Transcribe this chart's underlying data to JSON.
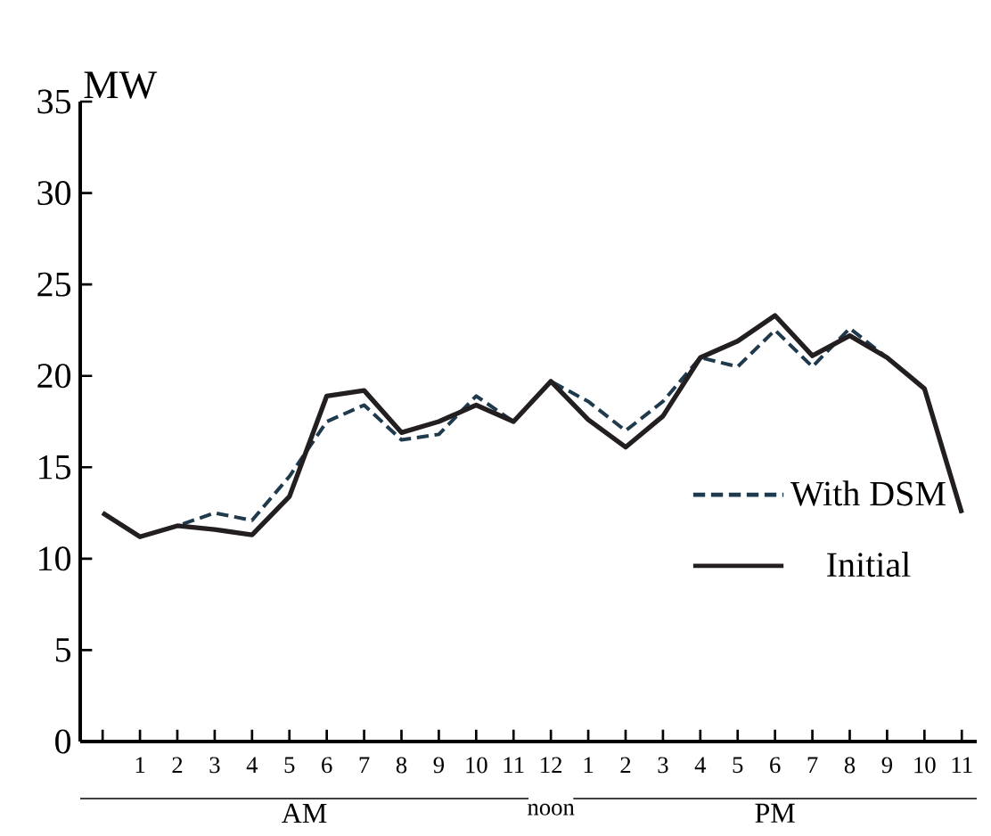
{
  "chart_data": {
    "type": "line",
    "ylabel": "MW",
    "categories": [
      null,
      "1",
      "2",
      "3",
      "4",
      "5",
      "6",
      "7",
      "8",
      "9",
      "10",
      "11",
      "12",
      "1",
      "2",
      "3",
      "4",
      "5",
      "6",
      "7",
      "8",
      "9",
      "10",
      "11"
    ],
    "series": [
      {
        "name": "With DSM",
        "color": "#1f3a4d",
        "line_style": "dashed",
        "values": [
          12.5,
          11.2,
          11.8,
          12.5,
          12.1,
          14.5,
          17.5,
          18.4,
          16.5,
          16.8,
          18.9,
          17.5,
          19.7,
          18.6,
          17.0,
          18.6,
          21.0,
          20.5,
          22.5,
          20.5,
          22.6,
          21.0,
          19.3,
          12.5
        ]
      },
      {
        "name": "Initial",
        "color": "#231f20",
        "line_style": "solid",
        "values": [
          12.5,
          11.2,
          11.8,
          11.6,
          11.3,
          13.4,
          18.9,
          19.2,
          16.9,
          17.5,
          18.4,
          17.5,
          19.7,
          17.6,
          16.1,
          17.8,
          21.0,
          21.9,
          23.3,
          21.1,
          22.2,
          21.0,
          19.3,
          12.5
        ]
      }
    ],
    "ylim": [
      0,
      35
    ],
    "yticks": [
      0,
      5,
      10,
      15,
      20,
      25,
      30,
      35
    ],
    "grid": false,
    "legend": "right",
    "marker": "none",
    "annotations": [
      "AM",
      "noon",
      "PM"
    ]
  }
}
